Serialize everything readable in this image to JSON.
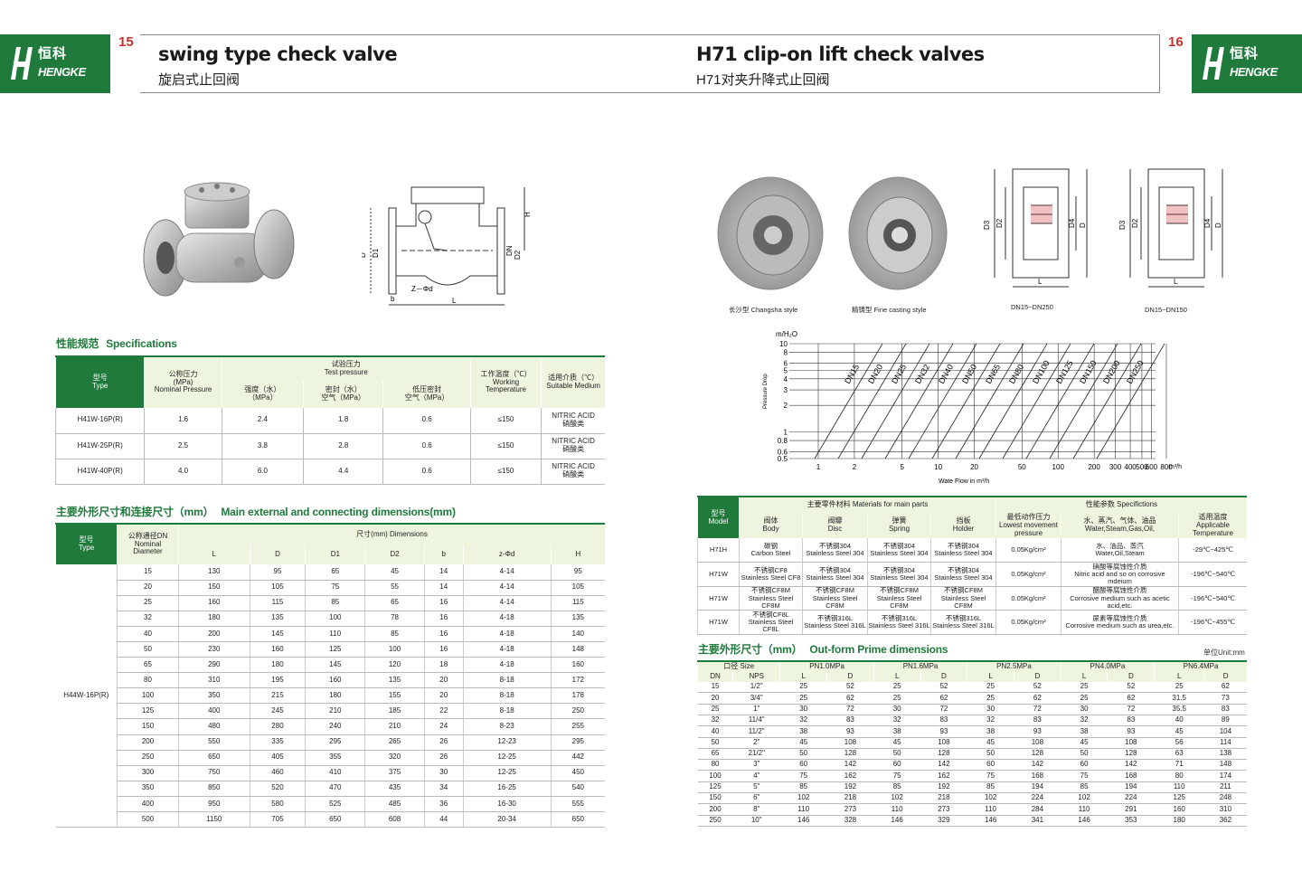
{
  "brand": {
    "cn": "恒科",
    "en": "HENGKE"
  },
  "left": {
    "page_number": "15",
    "title_en": "swing type check valve",
    "title_cn": "旋启式止回阀",
    "drawing_labels": {
      "D": "D",
      "D1": "D1",
      "DN": "DN",
      "D2": "D2",
      "H": "H",
      "b": "b",
      "zd": "Z－Φd",
      "L": "L"
    },
    "specs": {
      "section_cn": "性能规范",
      "section_en": "Specifications",
      "headers": {
        "type_cn": "型号",
        "type_en": "Type",
        "pressure_cn": "公称压力",
        "pressure_unit": "(MPa)",
        "pressure_en": "Nominal Pressure",
        "test_cn": "试验压力",
        "test_en": "Test pressure",
        "strength": "强度（水）",
        "strength_unit": "（MPa）",
        "seal": "密封（水）",
        "seal2": "空气（MPa）",
        "low": "低压密封",
        "low2": "空气（MPa）",
        "temp_cn": "工作温度（℃）",
        "temp_en": "Working Temperature",
        "medium_cn": "适用介质（℃）",
        "medium_en": "Suitable Medium"
      },
      "rows": [
        {
          "type": "H41W-16P(R)",
          "pn": "1.6",
          "strength": "2.4",
          "seal": "1.8",
          "low": "0.6",
          "temp": "≤150",
          "medium1": "NITRIC ACID",
          "medium2": "硝酸类"
        },
        {
          "type": "H41W-25P(R)",
          "pn": "2.5",
          "strength": "3.8",
          "seal": "2.8",
          "low": "0.6",
          "temp": "≤150",
          "medium1": "NITRIC ACID",
          "medium2": "硝酸类"
        },
        {
          "type": "H41W-40P(R)",
          "pn": "4.0",
          "strength": "6.0",
          "seal": "4.4",
          "low": "0.6",
          "temp": "≤150",
          "medium1": "NITRIC ACID",
          "medium2": "硝酸类"
        }
      ]
    },
    "dims": {
      "section_cn": "主要外形尺寸和连接尺寸（mm）",
      "section_en": "Main external and connecting dimensions(mm)",
      "headers": {
        "type_cn": "型号",
        "type_en": "Type",
        "dn_cn": "公称通径DN",
        "dn_en": "Nominal Diameter",
        "dims": "尺寸(mm) Dimensions",
        "cols": [
          "L",
          "D",
          "D1",
          "D2",
          "b",
          "z-Φd",
          "H"
        ]
      },
      "model": "H44W-16P(R)",
      "rows": [
        [
          "15",
          "130",
          "95",
          "65",
          "45",
          "14",
          "4-14",
          "95"
        ],
        [
          "20",
          "150",
          "105",
          "75",
          "55",
          "14",
          "4-14",
          "105"
        ],
        [
          "25",
          "160",
          "115",
          "85",
          "65",
          "16",
          "4-14",
          "115"
        ],
        [
          "32",
          "180",
          "135",
          "100",
          "78",
          "16",
          "4-18",
          "135"
        ],
        [
          "40",
          "200",
          "145",
          "110",
          "85",
          "16",
          "4-18",
          "140"
        ],
        [
          "50",
          "230",
          "160",
          "125",
          "100",
          "16",
          "4-18",
          "148"
        ],
        [
          "65",
          "290",
          "180",
          "145",
          "120",
          "18",
          "4-18",
          "160"
        ],
        [
          "80",
          "310",
          "195",
          "160",
          "135",
          "20",
          "8-18",
          "172"
        ],
        [
          "100",
          "350",
          "215",
          "180",
          "155",
          "20",
          "8-18",
          "178"
        ],
        [
          "125",
          "400",
          "245",
          "210",
          "185",
          "22",
          "8-18",
          "250"
        ],
        [
          "150",
          "480",
          "280",
          "240",
          "210",
          "24",
          "8-23",
          "255"
        ],
        [
          "200",
          "550",
          "335",
          "295",
          "265",
          "26",
          "12-23",
          "295"
        ],
        [
          "250",
          "650",
          "405",
          "355",
          "320",
          "26",
          "12-25",
          "442"
        ],
        [
          "300",
          "750",
          "460",
          "410",
          "375",
          "30",
          "12-25",
          "450"
        ],
        [
          "350",
          "850",
          "520",
          "470",
          "435",
          "34",
          "16-25",
          "540"
        ],
        [
          "400",
          "950",
          "580",
          "525",
          "485",
          "36",
          "16-30",
          "555"
        ],
        [
          "500",
          "1150",
          "705",
          "650",
          "608",
          "44",
          "20-34",
          "650"
        ]
      ]
    }
  },
  "right": {
    "page_number": "16",
    "title_en": "H71 clip-on lift check valves",
    "title_cn": "H71对夹升降式止回阀",
    "captions": {
      "changsha": "长沙型 Changsha style",
      "fine": "精铸型 Fine casting style",
      "dn250": "DN15~DN250",
      "dn150": "DN15~DN150"
    },
    "drawing_labels": {
      "D3": "D3",
      "D2": "D2",
      "D4": "D4",
      "D": "D",
      "L": "L"
    },
    "chart": {
      "ylabel_top": "m/H₂O",
      "ylabel": "Pressure Drop",
      "xlabel": "Wate Flow in m³/h",
      "xunit": "m³/h",
      "yticks": [
        "10",
        "8",
        "6",
        "5",
        "4",
        "3",
        "2",
        "1",
        "0.8",
        "0.6",
        "0.5"
      ],
      "xticks": [
        "1",
        "2",
        "5",
        "10",
        "20",
        "50",
        "100",
        "200",
        "300",
        "400",
        "500",
        "600",
        "800"
      ],
      "series": [
        "DN15",
        "DN20",
        "DN25",
        "DN32",
        "DN40",
        "DN50",
        "DN65",
        "DN80",
        "DN100",
        "DN125",
        "DN150",
        "DN200",
        "DN250"
      ]
    },
    "materials": {
      "headers": {
        "model_cn": "型号",
        "model_en": "Model",
        "parts": "主要零件材料 Materials for main parts",
        "perf": "性能参数 Specifictions",
        "body_cn": "阀体",
        "body_en": "Body",
        "disc_cn": "阀瓣",
        "disc_en": "Disc",
        "spring_cn": "弹簧",
        "spring_en": "Spring",
        "holder_cn": "挡板",
        "holder_en": "Holder",
        "press_cn": "最低动作压力",
        "press_en": "Lowest movement pressure",
        "medium_cn": "水、蒸汽、气体、油品",
        "medium_en": "Water,Steam,Gas,Oil,",
        "temp_cn": "适用温度",
        "temp_en": "Applicable Temperature"
      },
      "rows": [
        {
          "model": "H71H",
          "body1": "碳钢",
          "body2": "Carbon Steel",
          "disc1": "不锈钢304",
          "disc2": "Stainless Steel 304",
          "spring1": "不锈钢304",
          "spring2": "Stainless Steel 304",
          "holder1": "不锈钢304",
          "holder2": "Stainless Steel 304",
          "press": "0.05Kg/cm²",
          "med1": "水、油品、蒸汽",
          "med2": "Water,Oil,Steam",
          "temp": "-29℃~425℃"
        },
        {
          "model": "H71W",
          "body1": "不锈钢CF8",
          "body2": "Stainless Steel CF8",
          "disc1": "不锈钢304",
          "disc2": "Stainless Steel 304",
          "spring1": "不锈钢304",
          "spring2": "Stainless Steel 304",
          "holder1": "不锈钢304",
          "holder2": "Stainless Steel 304",
          "press": "0.05Kg/cm²",
          "med1": "硝酸等腐蚀性介质",
          "med2": "Nitric acid and so on corrosive mdeium",
          "temp": "-196℃~540℃"
        },
        {
          "model": "H71W",
          "body1": "不锈钢CF8M",
          "body2": "Stainless Steel CF8M",
          "disc1": "不锈钢CF8M",
          "disc2": "Stainless Steel CF8M",
          "spring1": "不锈钢CF8M",
          "spring2": "Stainless Steel CF8M",
          "holder1": "不锈钢CF8M",
          "holder2": "Stainless Steel CF8M",
          "press": "0.05Kg/cm²",
          "med1": "醋酸等腐蚀性介质",
          "med2": "Corrosive medium such as acetic acid,etc.",
          "temp": "-196℃~540℃"
        },
        {
          "model": "H71W",
          "body1": "不锈钢CF8L",
          "body2": "Stainless Steel CF8L",
          "disc1": "不锈钢316L",
          "disc2": "Stainless Steel 316L",
          "spring1": "不锈钢316L",
          "spring2": "Stainless Steel 316L",
          "holder1": "不锈钢316L",
          "holder2": "Stainless Steel 316L",
          "press": "0.05Kg/cm²",
          "med1": "尿素等腐蚀性介质",
          "med2": "Corrosive medium such as urea,etc.",
          "temp": "-196℃~455℃"
        }
      ]
    },
    "prime": {
      "section_cn": "主要外形尺寸（mm）",
      "section_en": "Out-form Prime dimensions",
      "unit": "单位Unit:mm",
      "headers": {
        "size": "口径 Size",
        "pn": [
          "PN1.0MPa",
          "PN1.6MPa",
          "PN2.5MPa",
          "PN4.0MPa",
          "PN6.4MPa"
        ],
        "dn": "DN",
        "nps": "NPS",
        "L": "L",
        "D": "D"
      },
      "rows": [
        [
          "15",
          "1/2\"",
          "25",
          "52",
          "25",
          "52",
          "25",
          "52",
          "25",
          "52",
          "25",
          "62"
        ],
        [
          "20",
          "3/4\"",
          "25",
          "62",
          "25",
          "62",
          "25",
          "62",
          "25",
          "62",
          "31.5",
          "73"
        ],
        [
          "25",
          "1\"",
          "30",
          "72",
          "30",
          "72",
          "30",
          "72",
          "30",
          "72",
          "35.5",
          "83"
        ],
        [
          "32",
          "11/4\"",
          "32",
          "83",
          "32",
          "83",
          "32",
          "83",
          "32",
          "83",
          "40",
          "89"
        ],
        [
          "40",
          "11/2\"",
          "38",
          "93",
          "38",
          "93",
          "38",
          "93",
          "38",
          "93",
          "45",
          "104"
        ],
        [
          "50",
          "2\"",
          "45",
          "108",
          "45",
          "108",
          "45",
          "108",
          "45",
          "108",
          "56",
          "114"
        ],
        [
          "65",
          "21/2\"",
          "50",
          "128",
          "50",
          "128",
          "50",
          "128",
          "50",
          "128",
          "63",
          "138"
        ],
        [
          "80",
          "3\"",
          "60",
          "142",
          "60",
          "142",
          "60",
          "142",
          "60",
          "142",
          "71",
          "148"
        ],
        [
          "100",
          "4\"",
          "75",
          "162",
          "75",
          "162",
          "75",
          "168",
          "75",
          "168",
          "80",
          "174"
        ],
        [
          "125",
          "5\"",
          "85",
          "192",
          "85",
          "192",
          "85",
          "194",
          "85",
          "194",
          "110",
          "211"
        ],
        [
          "150",
          "6\"",
          "102",
          "218",
          "102",
          "218",
          "102",
          "224",
          "102",
          "224",
          "125",
          "248"
        ],
        [
          "200",
          "8\"",
          "110",
          "273",
          "110",
          "273",
          "110",
          "284",
          "110",
          "291",
          "160",
          "310"
        ],
        [
          "250",
          "10\"",
          "146",
          "328",
          "146",
          "329",
          "146",
          "341",
          "146",
          "353",
          "180",
          "362"
        ]
      ]
    }
  }
}
